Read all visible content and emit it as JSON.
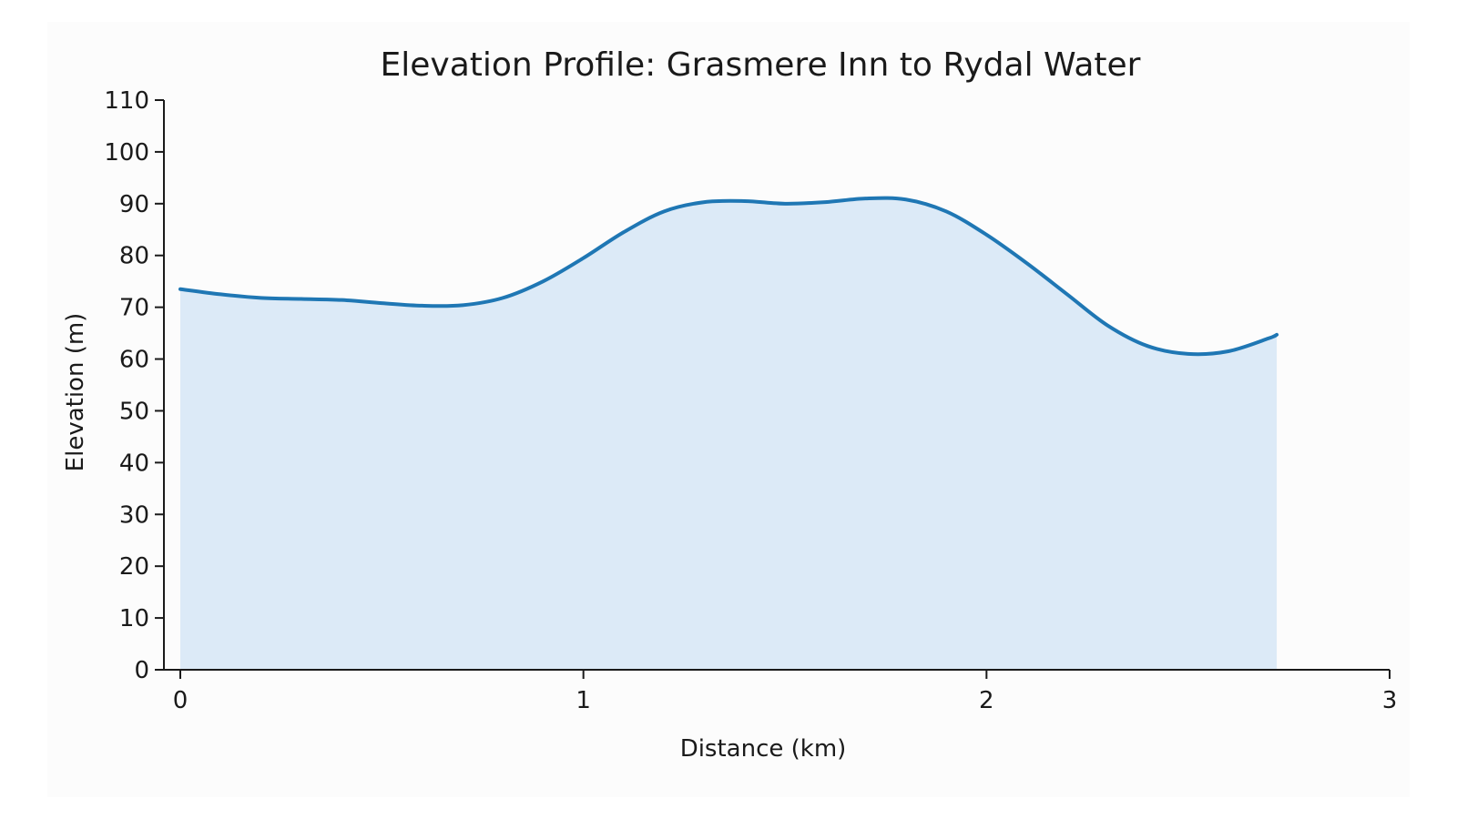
{
  "chart_data": {
    "type": "area",
    "title": "Elevation Profile: Grasmere Inn to Rydal Water",
    "xlabel": "Distance (km)",
    "ylabel": "Elevation (m)",
    "xlim": [
      0,
      3
    ],
    "ylim": [
      0,
      110
    ],
    "x_ticks": [
      0,
      1,
      2,
      3
    ],
    "y_ticks": [
      0,
      10,
      20,
      30,
      40,
      50,
      60,
      70,
      80,
      90,
      100,
      110
    ],
    "grid": false,
    "legend": "none",
    "series": [
      {
        "x": [
          0.0,
          0.1,
          0.2,
          0.3,
          0.4,
          0.5,
          0.6,
          0.7,
          0.8,
          0.9,
          1.0,
          1.1,
          1.2,
          1.3,
          1.4,
          1.5,
          1.6,
          1.7,
          1.8,
          1.9,
          2.0,
          2.1,
          2.2,
          2.3,
          2.4,
          2.5,
          2.6,
          2.7,
          2.72
        ],
        "y": [
          73.5,
          72.5,
          71.8,
          71.6,
          71.4,
          70.8,
          70.3,
          70.4,
          71.8,
          75.0,
          79.5,
          84.5,
          88.5,
          90.3,
          90.5,
          90.0,
          90.3,
          91.0,
          90.8,
          88.5,
          84.0,
          78.5,
          72.5,
          66.5,
          62.5,
          61.0,
          61.5,
          64.0,
          64.7
        ]
      }
    ],
    "colors": {
      "line": "#1f77b4",
      "fill": "#dceaf7",
      "axis": "#1a1a1a"
    }
  }
}
